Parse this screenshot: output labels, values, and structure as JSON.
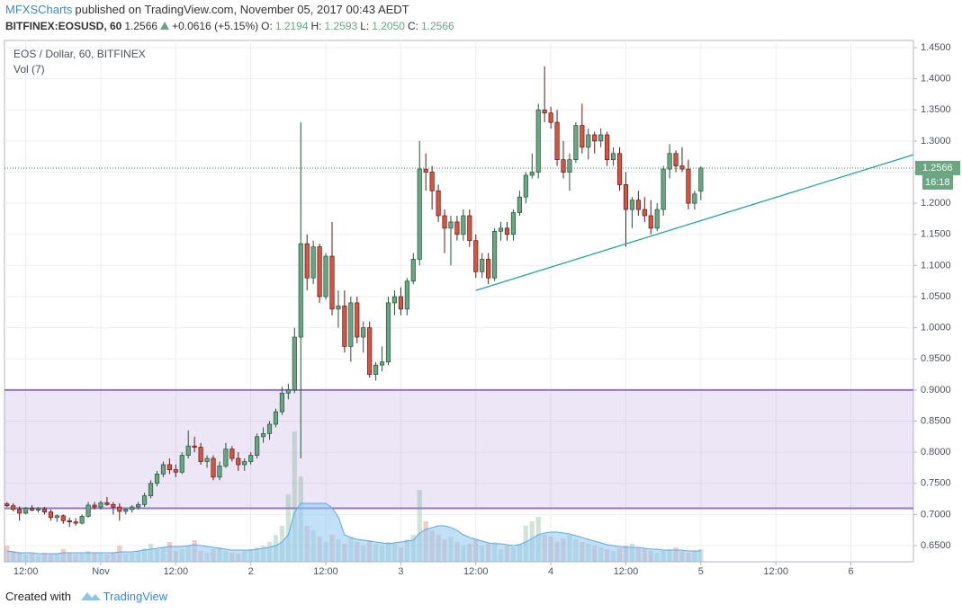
{
  "header": {
    "author": "MFXSCharts",
    "published": "published on TradingView.com, November 05, 2017 00:43 AEDT",
    "symbol": "BITFINEX:EOSUSD, 60",
    "last": "1.2566",
    "change": "+0.0616 (+5.15%)",
    "o_label": "O:",
    "o": "1.2194",
    "h_label": "H:",
    "h": "1.2593",
    "l_label": "L:",
    "l": "1.2050",
    "c_label": "C:",
    "c": "1.2566"
  },
  "chart_data": {
    "type": "candlestick",
    "title": "EOS / Dollar, 60, BITFINEX",
    "volume_title": "Vol (7)",
    "x": [
      0,
      1,
      2,
      3,
      4,
      5,
      6,
      7,
      8,
      9,
      10,
      11,
      12,
      13,
      14,
      15,
      16,
      17,
      18,
      19,
      20,
      21,
      22,
      23,
      24,
      25,
      26,
      27,
      28,
      29,
      30,
      31,
      32,
      33,
      34,
      35,
      36,
      37,
      38,
      39,
      40,
      41,
      42,
      43,
      44,
      45,
      46,
      47,
      48,
      49,
      50,
      51,
      52,
      53,
      54,
      55,
      56,
      57,
      58,
      59,
      60,
      61,
      62,
      63,
      64,
      65,
      66,
      67,
      68,
      69,
      70,
      71,
      72,
      73,
      74,
      75,
      76,
      77,
      78,
      79,
      80,
      81,
      82,
      83,
      84,
      85,
      86,
      87,
      88,
      89,
      90,
      91,
      92,
      93,
      94,
      95,
      96,
      97,
      98,
      99,
      100,
      101,
      102,
      103,
      104,
      105,
      106,
      107,
      108,
      109,
      110,
      111
    ],
    "ohlc": [
      [
        0.717,
        0.72,
        0.712,
        0.714
      ],
      [
        0.714,
        0.718,
        0.705,
        0.708
      ],
      [
        0.708,
        0.713,
        0.69,
        0.702
      ],
      [
        0.702,
        0.712,
        0.7,
        0.71
      ],
      [
        0.71,
        0.715,
        0.705,
        0.707
      ],
      [
        0.707,
        0.712,
        0.703,
        0.709
      ],
      [
        0.709,
        0.712,
        0.7,
        0.704
      ],
      [
        0.704,
        0.708,
        0.69,
        0.695
      ],
      [
        0.695,
        0.7,
        0.688,
        0.698
      ],
      [
        0.698,
        0.7,
        0.685,
        0.69
      ],
      [
        0.69,
        0.695,
        0.68,
        0.688
      ],
      [
        0.688,
        0.694,
        0.682,
        0.686
      ],
      [
        0.686,
        0.7,
        0.684,
        0.697
      ],
      [
        0.697,
        0.72,
        0.695,
        0.715
      ],
      [
        0.715,
        0.72,
        0.708,
        0.712
      ],
      [
        0.712,
        0.722,
        0.708,
        0.719
      ],
      [
        0.719,
        0.728,
        0.714,
        0.716
      ],
      [
        0.716,
        0.72,
        0.7,
        0.712
      ],
      [
        0.712,
        0.718,
        0.69,
        0.705
      ],
      [
        0.705,
        0.71,
        0.7,
        0.708
      ],
      [
        0.708,
        0.715,
        0.703,
        0.712
      ],
      [
        0.712,
        0.72,
        0.708,
        0.716
      ],
      [
        0.716,
        0.735,
        0.712,
        0.73
      ],
      [
        0.73,
        0.755,
        0.726,
        0.75
      ],
      [
        0.75,
        0.77,
        0.745,
        0.765
      ],
      [
        0.765,
        0.785,
        0.76,
        0.78
      ],
      [
        0.78,
        0.79,
        0.765,
        0.772
      ],
      [
        0.772,
        0.78,
        0.76,
        0.768
      ],
      [
        0.768,
        0.8,
        0.765,
        0.795
      ],
      [
        0.795,
        0.835,
        0.79,
        0.81
      ],
      [
        0.81,
        0.825,
        0.8,
        0.808
      ],
      [
        0.808,
        0.815,
        0.78,
        0.785
      ],
      [
        0.785,
        0.795,
        0.775,
        0.79
      ],
      [
        0.79,
        0.795,
        0.755,
        0.76
      ],
      [
        0.76,
        0.785,
        0.755,
        0.778
      ],
      [
        0.778,
        0.815,
        0.775,
        0.805
      ],
      [
        0.805,
        0.81,
        0.785,
        0.79
      ],
      [
        0.79,
        0.8,
        0.77,
        0.78
      ],
      [
        0.78,
        0.79,
        0.77,
        0.785
      ],
      [
        0.785,
        0.8,
        0.78,
        0.795
      ],
      [
        0.795,
        0.83,
        0.79,
        0.825
      ],
      [
        0.825,
        0.84,
        0.815,
        0.83
      ],
      [
        0.83,
        0.85,
        0.82,
        0.845
      ],
      [
        0.845,
        0.87,
        0.84,
        0.865
      ],
      [
        0.865,
        0.905,
        0.86,
        0.895
      ],
      [
        0.895,
        0.91,
        0.885,
        0.9
      ],
      [
        0.9,
        1.0,
        0.895,
        0.985
      ],
      [
        0.985,
        1.33,
        0.79,
        1.135
      ],
      [
        1.135,
        1.15,
        1.06,
        1.08
      ],
      [
        1.08,
        1.14,
        1.07,
        1.13
      ],
      [
        1.13,
        1.135,
        1.04,
        1.05
      ],
      [
        1.05,
        1.12,
        1.045,
        1.115
      ],
      [
        1.115,
        1.17,
        1.02,
        1.03
      ],
      [
        1.03,
        1.06,
        1.0,
        1.035
      ],
      [
        1.035,
        1.06,
        0.96,
        0.97
      ],
      [
        0.97,
        1.05,
        0.945,
        1.04
      ],
      [
        1.04,
        1.05,
        0.975,
        0.985
      ],
      [
        0.985,
        1.01,
        0.96,
        1.0
      ],
      [
        1.0,
        1.01,
        0.92,
        0.925
      ],
      [
        0.925,
        0.945,
        0.915,
        0.94
      ],
      [
        0.94,
        0.97,
        0.93,
        0.945
      ],
      [
        0.945,
        1.05,
        0.94,
        1.04
      ],
      [
        1.04,
        1.06,
        1.02,
        1.05
      ],
      [
        1.05,
        1.065,
        1.02,
        1.03
      ],
      [
        1.03,
        1.08,
        1.02,
        1.075
      ],
      [
        1.075,
        1.12,
        1.07,
        1.11
      ],
      [
        1.11,
        1.3,
        1.1,
        1.255
      ],
      [
        1.255,
        1.28,
        1.22,
        1.25
      ],
      [
        1.25,
        1.26,
        1.19,
        1.22
      ],
      [
        1.22,
        1.23,
        1.17,
        1.18
      ],
      [
        1.18,
        1.19,
        1.12,
        1.16
      ],
      [
        1.16,
        1.18,
        1.1,
        1.17
      ],
      [
        1.17,
        1.18,
        1.14,
        1.15
      ],
      [
        1.15,
        1.19,
        1.14,
        1.18
      ],
      [
        1.18,
        1.19,
        1.13,
        1.14
      ],
      [
        1.14,
        1.15,
        1.08,
        1.09
      ],
      [
        1.09,
        1.12,
        1.08,
        1.11
      ],
      [
        1.11,
        1.12,
        1.07,
        1.08
      ],
      [
        1.08,
        1.16,
        1.075,
        1.155
      ],
      [
        1.155,
        1.17,
        1.14,
        1.16
      ],
      [
        1.16,
        1.17,
        1.14,
        1.15
      ],
      [
        1.15,
        1.19,
        1.14,
        1.185
      ],
      [
        1.185,
        1.22,
        1.18,
        1.21
      ],
      [
        1.21,
        1.25,
        1.2,
        1.245
      ],
      [
        1.245,
        1.28,
        1.24,
        1.25
      ],
      [
        1.25,
        1.36,
        1.24,
        1.35
      ],
      [
        1.35,
        1.42,
        1.33,
        1.345
      ],
      [
        1.345,
        1.355,
        1.32,
        1.33
      ],
      [
        1.33,
        1.35,
        1.26,
        1.27
      ],
      [
        1.27,
        1.3,
        1.24,
        1.25
      ],
      [
        1.25,
        1.28,
        1.22,
        1.27
      ],
      [
        1.27,
        1.33,
        1.265,
        1.325
      ],
      [
        1.325,
        1.36,
        1.28,
        1.29
      ],
      [
        1.29,
        1.32,
        1.27,
        1.31
      ],
      [
        1.31,
        1.315,
        1.28,
        1.3
      ],
      [
        1.3,
        1.32,
        1.29,
        1.31
      ],
      [
        1.31,
        1.315,
        1.26,
        1.27
      ],
      [
        1.27,
        1.29,
        1.26,
        1.28
      ],
      [
        1.28,
        1.29,
        1.22,
        1.23
      ],
      [
        1.23,
        1.25,
        1.13,
        1.19
      ],
      [
        1.19,
        1.21,
        1.16,
        1.205
      ],
      [
        1.205,
        1.22,
        1.18,
        1.19
      ],
      [
        1.19,
        1.21,
        1.17,
        1.18
      ],
      [
        1.18,
        1.205,
        1.15,
        1.16
      ],
      [
        1.16,
        1.2,
        1.155,
        1.19
      ],
      [
        1.19,
        1.26,
        1.18,
        1.255
      ],
      [
        1.255,
        1.295,
        1.24,
        1.28
      ],
      [
        1.28,
        1.285,
        1.25,
        1.26
      ],
      [
        1.26,
        1.29,
        1.25,
        1.255
      ],
      [
        1.255,
        1.27,
        1.19,
        1.2
      ],
      [
        1.2,
        1.22,
        1.19,
        1.215
      ],
      [
        1.2194,
        1.2593,
        1.205,
        1.2566
      ]
    ],
    "volume": [
      18,
      12,
      10,
      8,
      9,
      7,
      10,
      8,
      9,
      14,
      10,
      8,
      9,
      12,
      10,
      9,
      8,
      10,
      18,
      9,
      10,
      12,
      15,
      20,
      14,
      16,
      22,
      12,
      14,
      18,
      24,
      12,
      10,
      14,
      16,
      12,
      10,
      9,
      12,
      14,
      16,
      18,
      22,
      30,
      40,
      75,
      145,
      95,
      40,
      35,
      28,
      22,
      30,
      25,
      20,
      28,
      22,
      18,
      24,
      20,
      18,
      22,
      20,
      16,
      25,
      30,
      80,
      45,
      35,
      30,
      25,
      28,
      22,
      18,
      20,
      25,
      18,
      20,
      22,
      14,
      18,
      16,
      20,
      40,
      45,
      50,
      30,
      28,
      22,
      26,
      30,
      25,
      22,
      20,
      18,
      16,
      14,
      12,
      15,
      18,
      20,
      16,
      14,
      12,
      10,
      12,
      14,
      16,
      12,
      10,
      12,
      14
    ],
    "vol_ma": [
      12,
      11,
      10,
      10,
      10,
      9,
      9,
      9,
      9,
      10,
      10,
      10,
      10,
      10,
      10,
      10,
      10,
      10,
      11,
      11,
      11,
      12,
      13,
      14,
      15,
      16,
      17,
      17,
      17,
      18,
      19,
      18,
      17,
      16,
      15,
      14,
      13,
      13,
      13,
      13,
      14,
      15,
      16,
      18,
      22,
      30,
      55,
      65,
      65,
      65,
      65,
      65,
      60,
      50,
      30,
      27,
      25,
      24,
      23,
      22,
      21,
      20,
      21,
      22,
      23,
      24,
      32,
      36,
      38,
      40,
      40,
      38,
      35,
      30,
      27,
      25,
      23,
      21,
      20,
      20,
      19,
      18,
      19,
      22,
      26,
      30,
      32,
      33,
      33,
      32,
      31,
      29,
      27,
      25,
      23,
      21,
      19,
      18,
      17,
      16,
      16,
      16,
      15,
      14,
      14,
      13,
      13,
      13,
      13,
      12,
      12,
      12
    ],
    "colors": {
      "up": "#6ba583",
      "down": "#d75442",
      "vol_ma": "#8fc9f2"
    },
    "xlim": [
      -0.4,
      145
    ],
    "xticks": [
      {
        "value": 3,
        "label": "12:00"
      },
      {
        "value": 15,
        "label": "Nov"
      },
      {
        "value": 27,
        "label": "12:00"
      },
      {
        "value": 39,
        "label": "2"
      },
      {
        "value": 51,
        "label": "12:00"
      },
      {
        "value": 63,
        "label": "3"
      },
      {
        "value": 75,
        "label": "12:00"
      },
      {
        "value": 87,
        "label": "4"
      },
      {
        "value": 99,
        "label": "12:00"
      },
      {
        "value": 111,
        "label": "5"
      },
      {
        "value": 123,
        "label": "12:00"
      },
      {
        "value": 135,
        "label": "6"
      }
    ],
    "ylim": [
      0.624,
      1.4616
    ],
    "yticks": [
      {
        "value": 0.65,
        "label": "0.6500"
      },
      {
        "value": 0.7,
        "label": "0.7000"
      },
      {
        "value": 0.75,
        "label": "0.7500"
      },
      {
        "value": 0.8,
        "label": "0.8000"
      },
      {
        "value": 0.85,
        "label": "0.8500"
      },
      {
        "value": 0.9,
        "label": "0.9000"
      },
      {
        "value": 0.95,
        "label": "0.9500"
      },
      {
        "value": 1.0,
        "label": "1.0000"
      },
      {
        "value": 1.05,
        "label": "1.0500"
      },
      {
        "value": 1.1,
        "label": "1.1000"
      },
      {
        "value": 1.15,
        "label": "1.1500"
      },
      {
        "value": 1.2,
        "label": "1.2000"
      },
      {
        "value": 1.25,
        "label": "1.2500"
      },
      {
        "value": 1.3,
        "label": "1.3000"
      },
      {
        "value": 1.35,
        "label": "1.3500"
      },
      {
        "value": 1.4,
        "label": "1.4000"
      },
      {
        "value": 1.45,
        "label": "1.4500"
      }
    ],
    "zone": {
      "from": 0.71,
      "to": 0.9,
      "color": "#9575cd"
    },
    "trendline": {
      "x": [
        75,
        145
      ],
      "y": [
        1.06,
        1.278
      ],
      "color": "#26a69a"
    },
    "last_label": "1.2566",
    "countdown": "16:18",
    "grid": true
  },
  "footer": {
    "created": "Created with",
    "brand": "TradingView"
  }
}
